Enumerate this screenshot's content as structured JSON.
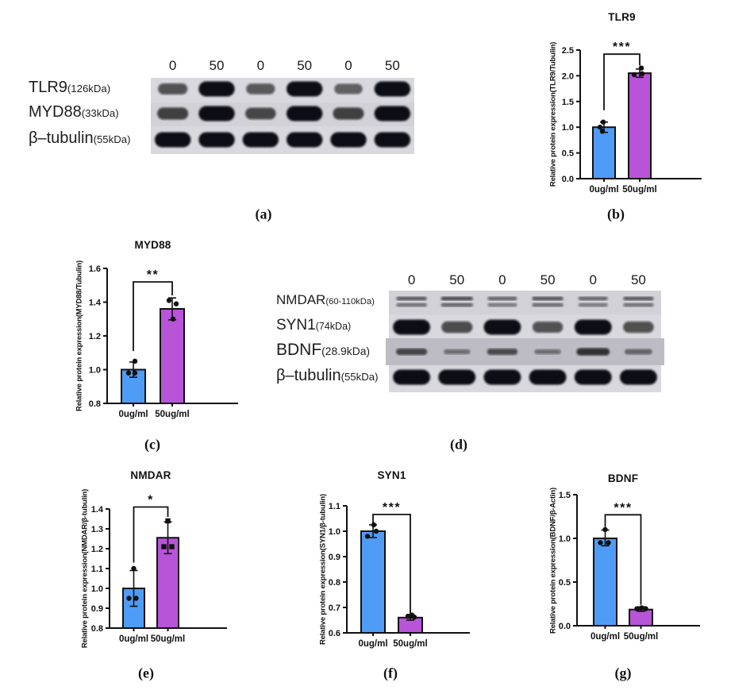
{
  "figure_tags": {
    "a": "(a)",
    "b": "(b)",
    "c": "(c)",
    "d": "(d)",
    "e": "(e)",
    "f": "(f)",
    "g": "(g)"
  },
  "colors": {
    "control_bar": "#4F9CF6",
    "treated_bar": "#B854D8",
    "band": "#0e0e13",
    "blot_background": "#d9d8de",
    "bdnf_strip": "#bdbcc4",
    "axis": "#111111"
  },
  "blots": {
    "a": {
      "lane_labels": [
        "0",
        "50",
        "0",
        "50",
        "0",
        "50"
      ],
      "rows": [
        {
          "name": "TLR9",
          "size": "(126kDa)",
          "intensities": [
            0.5,
            1,
            0.45,
            1,
            0.4,
            1
          ]
        },
        {
          "name": "MYD88",
          "size": "(33kDa)",
          "intensities": [
            0.62,
            1,
            0.58,
            1,
            0.62,
            1
          ]
        },
        {
          "name": "β–tubulin",
          "size": "(55kDa)",
          "intensities": [
            1,
            1,
            1,
            1,
            1,
            1
          ]
        }
      ]
    },
    "d": {
      "lane_labels": [
        "0",
        "50",
        "0",
        "50",
        "0",
        "50"
      ],
      "rows": [
        {
          "name": "NMDAR",
          "size": "(60-110kDa)",
          "intensities": [
            0.5,
            0.62,
            0.42,
            0.55,
            0.42,
            0.5
          ]
        },
        {
          "name": "SYN1",
          "size": "(74kDa)",
          "intensities": [
            1,
            0.55,
            1,
            0.5,
            1,
            0.52
          ]
        },
        {
          "name": "BDNF",
          "size": "(28.9kDa)",
          "intensities": [
            0.55,
            0.2,
            0.5,
            0.2,
            0.7,
            0.28
          ]
        },
        {
          "name": "β–tubulin",
          "size": "(55kDa)",
          "intensities": [
            1,
            1,
            1,
            1,
            1,
            1
          ]
        }
      ]
    }
  },
  "chart_data": {
    "b": {
      "type": "bar",
      "title": "TLR9",
      "ylabel": "Relative protein expression(TLR9/Tubulin)",
      "categories": [
        "0ug/ml",
        "50ug/ml"
      ],
      "values": [
        1.0,
        2.05
      ],
      "error_low": [
        0.9,
        1.97
      ],
      "error_high": [
        1.1,
        2.13
      ],
      "points": [
        [
          [
            -1,
            1.1
          ],
          [
            -5,
            1.0
          ],
          [
            -2,
            0.92
          ]
        ],
        [
          [
            2,
            2.15
          ],
          [
            -7,
            2.02
          ],
          [
            3,
            2.04
          ]
        ]
      ],
      "point_shapes": [
        "circle",
        "circle"
      ],
      "significance": "***",
      "ylim": [
        0,
        2.5
      ],
      "yticks": [
        "0.0",
        "0.5",
        "1.0",
        "1.5",
        "2.0",
        "2.5"
      ],
      "bracket": {
        "line": 2.42,
        "left": 1.33,
        "right": 2.2
      },
      "bar_colors": [
        "#4F9CF6",
        "#B854D8"
      ]
    },
    "c": {
      "type": "bar",
      "title": "MYD88",
      "ylabel": "Relative protein expression(MYD88/Tubulin)",
      "categories": [
        "0ug/ml",
        "50ug/ml"
      ],
      "values": [
        1.0,
        1.36
      ],
      "error_low": [
        0.955,
        1.295
      ],
      "error_high": [
        1.045,
        1.425
      ],
      "points": [
        [
          [
            2,
            1.05
          ],
          [
            -6,
            0.98
          ],
          [
            2,
            0.98
          ]
        ],
        [
          [
            -4,
            1.41
          ],
          [
            5,
            1.39
          ],
          [
            1,
            1.3
          ]
        ]
      ],
      "point_shapes": [
        "circle",
        "circle"
      ],
      "significance": "**",
      "ylim": [
        0.8,
        1.6
      ],
      "yticks": [
        "0.8",
        "1.0",
        "1.2",
        "1.4",
        "1.6"
      ],
      "bracket": {
        "line": 1.52,
        "left": 1.11,
        "right": 1.44
      },
      "bar_colors": [
        "#4F9CF6",
        "#B854D8"
      ]
    },
    "e": {
      "type": "bar",
      "title": "NMDAR",
      "ylabel": "Relative protein expression(NMDAR/β-tubulin)",
      "categories": [
        "0ug/ml",
        "50ug/ml"
      ],
      "values": [
        1.0,
        1.255
      ],
      "error_low": [
        0.91,
        1.175
      ],
      "error_high": [
        1.09,
        1.335
      ],
      "points": [
        [
          [
            0,
            1.1
          ],
          [
            -6,
            0.95
          ],
          [
            3,
            0.95
          ]
        ],
        [
          [
            0,
            1.34
          ],
          [
            -5,
            1.21
          ],
          [
            5,
            1.21
          ]
        ]
      ],
      "point_shapes": [
        "circle",
        "square"
      ],
      "significance": "*",
      "ylim": [
        0.8,
        1.4
      ],
      "yticks": [
        "0.8",
        "0.9",
        "1.0",
        "1.1",
        "1.2",
        "1.3",
        "1.4"
      ],
      "bracket": {
        "line": 1.41,
        "left": 1.13,
        "right": 1.36
      },
      "bar_colors": [
        "#4F9CF6",
        "#B854D8"
      ]
    },
    "f": {
      "type": "bar",
      "title": "SYN1",
      "ylabel": "Relative protein expression(SYN1/β-tubulin)",
      "categories": [
        "0ug/ml",
        "50ug/ml"
      ],
      "values": [
        1.0,
        0.66
      ],
      "error_low": [
        0.975,
        0.65
      ],
      "error_high": [
        1.025,
        0.672
      ],
      "points": [
        [
          [
            1,
            1.025
          ],
          [
            4,
            1.0
          ],
          [
            -7,
            0.98
          ]
        ],
        [
          [
            -3,
            0.665
          ],
          [
            2,
            0.67
          ],
          [
            5,
            0.662
          ]
        ]
      ],
      "point_shapes": [
        "circle",
        "circle"
      ],
      "significance": "***",
      "ylim": [
        0.6,
        1.1
      ],
      "yticks": [
        "0.6",
        "0.7",
        "0.8",
        "0.9",
        "1.0",
        "1.1"
      ],
      "bracket": {
        "line": 1.066,
        "left": 1.03,
        "right": 0.675
      },
      "bar_colors": [
        "#4F9CF6",
        "#B854D8"
      ]
    },
    "g": {
      "type": "bar",
      "title": "BDNF",
      "ylabel": "Relative protein expression(BDNF/β-Actin)",
      "categories": [
        "0ug/ml",
        "50ug/ml"
      ],
      "values": [
        1.0,
        0.185
      ],
      "error_low": [
        0.915,
        0.165
      ],
      "error_high": [
        1.095,
        0.215
      ],
      "points": [
        [
          [
            0,
            1.1
          ],
          [
            -6,
            0.95
          ],
          [
            4,
            0.95
          ]
        ],
        [
          [
            -5,
            0.195
          ],
          [
            1,
            0.205
          ],
          [
            6,
            0.195
          ]
        ]
      ],
      "point_shapes": [
        "circle",
        "circle"
      ],
      "significance": "***",
      "ylim": [
        0,
        1.5
      ],
      "yticks": [
        "0.0",
        "0.5",
        "1.0",
        "1.5"
      ],
      "bracket": {
        "line": 1.27,
        "left": 1.13,
        "right": 0.24
      },
      "bar_colors": [
        "#4F9CF6",
        "#B854D8"
      ]
    }
  }
}
